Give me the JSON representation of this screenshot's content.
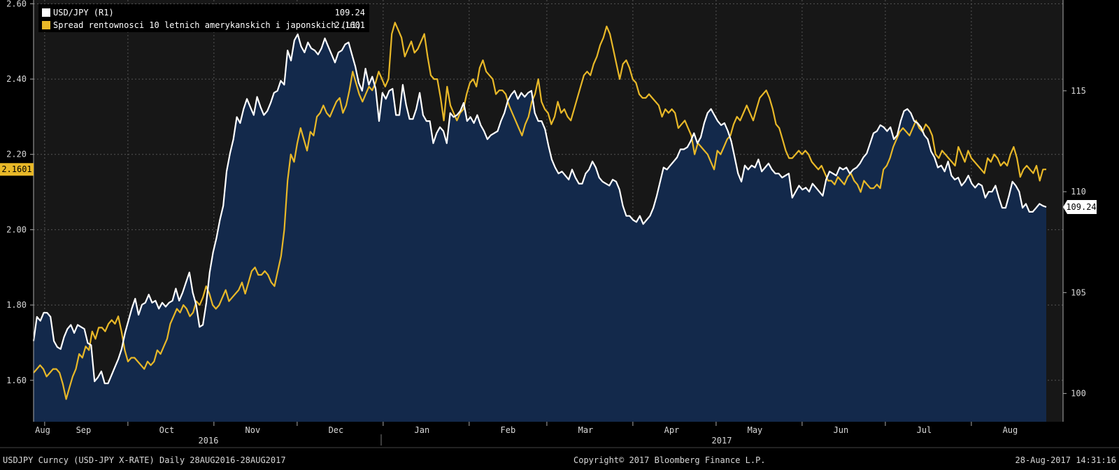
{
  "chart_data": {
    "type": "area",
    "legend_placement": "top-left",
    "x_axis": {
      "months": [
        "Aug",
        "Sep",
        "Oct",
        "Nov",
        "Dec",
        "Jan",
        "Feb",
        "Mar",
        "Apr",
        "May",
        "Jun",
        "Jul",
        "Aug"
      ],
      "years": [
        "2016",
        "2017"
      ],
      "range": [
        "2016-08-28",
        "2017-08-28"
      ]
    },
    "y_left": {
      "ylim": [
        1.49,
        2.61
      ],
      "ticks": [
        "1.60",
        "1.80",
        "2.00",
        "2.20",
        "2.40",
        "2.60"
      ]
    },
    "y_right": {
      "ylim": [
        98.6,
        119.5
      ],
      "ticks": [
        "100",
        "105",
        "110",
        "115"
      ]
    },
    "grid": true,
    "series": [
      {
        "name": "USD/JPY (R1)",
        "last_label": "109.24",
        "color": "#ffffff",
        "fill": "#13294b",
        "axis": "right",
        "values": [
          102.6,
          103.8,
          103.6,
          104.0,
          104.0,
          103.8,
          102.6,
          102.3,
          102.2,
          102.8,
          103.2,
          103.4,
          103.0,
          103.4,
          103.3,
          103.2,
          102.5,
          102.4,
          100.6,
          100.8,
          101.1,
          100.5,
          100.5,
          100.9,
          101.3,
          101.7,
          102.2,
          103.0,
          103.6,
          104.2,
          104.7,
          103.9,
          104.4,
          104.5,
          104.9,
          104.5,
          104.6,
          104.2,
          104.5,
          104.3,
          104.5,
          104.6,
          105.2,
          104.6,
          105.0,
          105.5,
          106.0,
          105.0,
          104.4,
          103.3,
          103.4,
          104.5,
          106.0,
          107.0,
          107.7,
          108.6,
          109.3,
          111.0,
          111.9,
          112.6,
          113.7,
          113.4,
          114.1,
          114.6,
          114.2,
          113.8,
          114.7,
          114.2,
          113.8,
          114.0,
          114.4,
          114.9,
          115.0,
          115.5,
          115.3,
          117.0,
          116.5,
          117.5,
          117.8,
          117.2,
          116.9,
          117.4,
          117.1,
          117.0,
          116.8,
          117.1,
          117.6,
          117.2,
          116.8,
          116.4,
          116.9,
          117.0,
          117.3,
          117.4,
          116.8,
          116.2,
          115.4,
          115.0,
          116.1,
          115.3,
          115.7,
          115.1,
          113.5,
          114.9,
          114.6,
          115.0,
          115.1,
          113.8,
          113.8,
          115.3,
          114.3,
          113.6,
          113.6,
          114.1,
          114.9,
          113.8,
          113.5,
          113.5,
          112.4,
          112.9,
          113.2,
          113.0,
          112.4,
          113.9,
          113.7,
          113.8,
          114.0,
          114.4,
          113.5,
          113.7,
          113.4,
          113.8,
          113.3,
          113.0,
          112.6,
          112.8,
          112.9,
          113.0,
          113.5,
          113.9,
          114.5,
          114.8,
          115.0,
          114.6,
          114.9,
          114.7,
          114.9,
          115.0,
          113.9,
          113.5,
          113.5,
          113.1,
          112.3,
          111.6,
          111.2,
          110.9,
          111.0,
          110.8,
          110.6,
          111.1,
          110.7,
          110.4,
          110.4,
          110.9,
          111.1,
          111.5,
          111.2,
          110.7,
          110.5,
          110.4,
          110.3,
          110.6,
          110.5,
          110.1,
          109.3,
          108.8,
          108.8,
          108.6,
          108.5,
          108.8,
          108.4,
          108.6,
          108.8,
          109.2,
          109.8,
          110.5,
          111.2,
          111.1,
          111.3,
          111.5,
          111.7,
          112.1,
          112.1,
          112.2,
          112.5,
          112.9,
          112.4,
          112.7,
          113.4,
          113.9,
          114.1,
          113.8,
          113.5,
          113.3,
          113.4,
          113.0,
          112.5,
          111.7,
          110.9,
          110.5,
          111.3,
          111.1,
          111.3,
          111.2,
          111.6,
          111.0,
          111.2,
          111.4,
          111.1,
          110.9,
          110.9,
          110.7,
          110.8,
          110.9,
          109.7,
          110.0,
          110.3,
          110.1,
          110.2,
          110.0,
          110.4,
          110.2,
          110.0,
          109.8,
          110.6,
          111.0,
          110.9,
          110.8,
          111.2,
          111.1,
          111.2,
          110.9,
          111.1,
          111.2,
          111.4,
          111.7,
          111.9,
          112.4,
          112.9,
          113.0,
          113.3,
          113.2,
          113.0,
          113.2,
          112.6,
          112.8,
          113.5,
          114.0,
          114.1,
          113.9,
          113.5,
          113.4,
          113.2,
          112.8,
          112.6,
          112.0,
          111.7,
          111.2,
          111.3,
          111.0,
          111.5,
          110.8,
          110.6,
          110.7,
          110.3,
          110.5,
          110.8,
          110.4,
          110.2,
          110.4,
          110.3,
          109.7,
          110.0,
          110.0,
          110.3,
          109.7,
          109.2,
          109.2,
          109.8,
          110.5,
          110.3,
          110.0,
          109.2,
          109.4,
          109.0,
          109.0,
          109.2,
          109.4,
          109.3,
          109.24
        ]
      },
      {
        "name": "Spread rentownosci 10 letnich amerykanskich i japonskich  (L1)",
        "last_label": "2.1601",
        "color": "#e8b828",
        "axis": "left",
        "values": [
          1.62,
          1.63,
          1.64,
          1.63,
          1.61,
          1.62,
          1.63,
          1.63,
          1.62,
          1.59,
          1.55,
          1.58,
          1.61,
          1.63,
          1.67,
          1.66,
          1.69,
          1.68,
          1.73,
          1.71,
          1.74,
          1.74,
          1.73,
          1.75,
          1.76,
          1.75,
          1.77,
          1.73,
          1.68,
          1.65,
          1.66,
          1.66,
          1.65,
          1.64,
          1.63,
          1.65,
          1.64,
          1.65,
          1.68,
          1.67,
          1.69,
          1.71,
          1.75,
          1.77,
          1.79,
          1.78,
          1.8,
          1.79,
          1.77,
          1.78,
          1.81,
          1.8,
          1.82,
          1.85,
          1.83,
          1.8,
          1.79,
          1.8,
          1.82,
          1.84,
          1.81,
          1.82,
          1.83,
          1.84,
          1.86,
          1.83,
          1.86,
          1.89,
          1.9,
          1.88,
          1.88,
          1.89,
          1.88,
          1.86,
          1.85,
          1.89,
          1.93,
          2.0,
          2.13,
          2.2,
          2.18,
          2.23,
          2.27,
          2.24,
          2.21,
          2.26,
          2.25,
          2.3,
          2.31,
          2.33,
          2.31,
          2.3,
          2.32,
          2.34,
          2.35,
          2.31,
          2.33,
          2.37,
          2.42,
          2.39,
          2.36,
          2.34,
          2.36,
          2.38,
          2.37,
          2.39,
          2.42,
          2.4,
          2.38,
          2.4,
          2.52,
          2.55,
          2.53,
          2.51,
          2.46,
          2.48,
          2.5,
          2.47,
          2.48,
          2.5,
          2.52,
          2.46,
          2.41,
          2.4,
          2.4,
          2.35,
          2.29,
          2.38,
          2.33,
          2.31,
          2.29,
          2.31,
          2.32,
          2.36,
          2.39,
          2.4,
          2.38,
          2.43,
          2.45,
          2.42,
          2.41,
          2.4,
          2.36,
          2.37,
          2.37,
          2.36,
          2.33,
          2.31,
          2.29,
          2.27,
          2.25,
          2.28,
          2.3,
          2.34,
          2.36,
          2.4,
          2.34,
          2.32,
          2.31,
          2.28,
          2.3,
          2.34,
          2.31,
          2.32,
          2.3,
          2.29,
          2.32,
          2.35,
          2.38,
          2.41,
          2.42,
          2.41,
          2.44,
          2.46,
          2.49,
          2.51,
          2.54,
          2.52,
          2.48,
          2.44,
          2.4,
          2.44,
          2.45,
          2.43,
          2.4,
          2.39,
          2.36,
          2.35,
          2.35,
          2.36,
          2.35,
          2.34,
          2.33,
          2.3,
          2.32,
          2.31,
          2.32,
          2.31,
          2.27,
          2.28,
          2.29,
          2.27,
          2.25,
          2.2,
          2.23,
          2.22,
          2.21,
          2.2,
          2.18,
          2.16,
          2.21,
          2.2,
          2.22,
          2.24,
          2.25,
          2.28,
          2.3,
          2.29,
          2.31,
          2.33,
          2.31,
          2.29,
          2.32,
          2.35,
          2.36,
          2.37,
          2.35,
          2.32,
          2.28,
          2.27,
          2.24,
          2.21,
          2.19,
          2.19,
          2.2,
          2.21,
          2.2,
          2.21,
          2.2,
          2.18,
          2.17,
          2.16,
          2.17,
          2.15,
          2.13,
          2.13,
          2.12,
          2.14,
          2.13,
          2.12,
          2.14,
          2.15,
          2.13,
          2.12,
          2.1,
          2.13,
          2.12,
          2.11,
          2.11,
          2.12,
          2.11,
          2.16,
          2.17,
          2.19,
          2.22,
          2.24,
          2.26,
          2.27,
          2.26,
          2.25,
          2.27,
          2.29,
          2.27,
          2.26,
          2.28,
          2.27,
          2.25,
          2.2,
          2.19,
          2.21,
          2.2,
          2.19,
          2.18,
          2.17,
          2.22,
          2.2,
          2.18,
          2.21,
          2.19,
          2.18,
          2.17,
          2.16,
          2.15,
          2.19,
          2.18,
          2.2,
          2.19,
          2.17,
          2.18,
          2.17,
          2.2,
          2.22,
          2.19,
          2.14,
          2.16,
          2.17,
          2.16,
          2.15,
          2.17,
          2.13,
          2.16,
          2.1601
        ]
      }
    ]
  },
  "footer": {
    "ticker": "USDJPY Curncy (USD-JPY X-RATE)  Daily 28AUG2016-28AUG2017",
    "copyright": "Copyright© 2017 Bloomberg Finance L.P.",
    "timestamp": "28-Aug-2017 14:31:16"
  }
}
